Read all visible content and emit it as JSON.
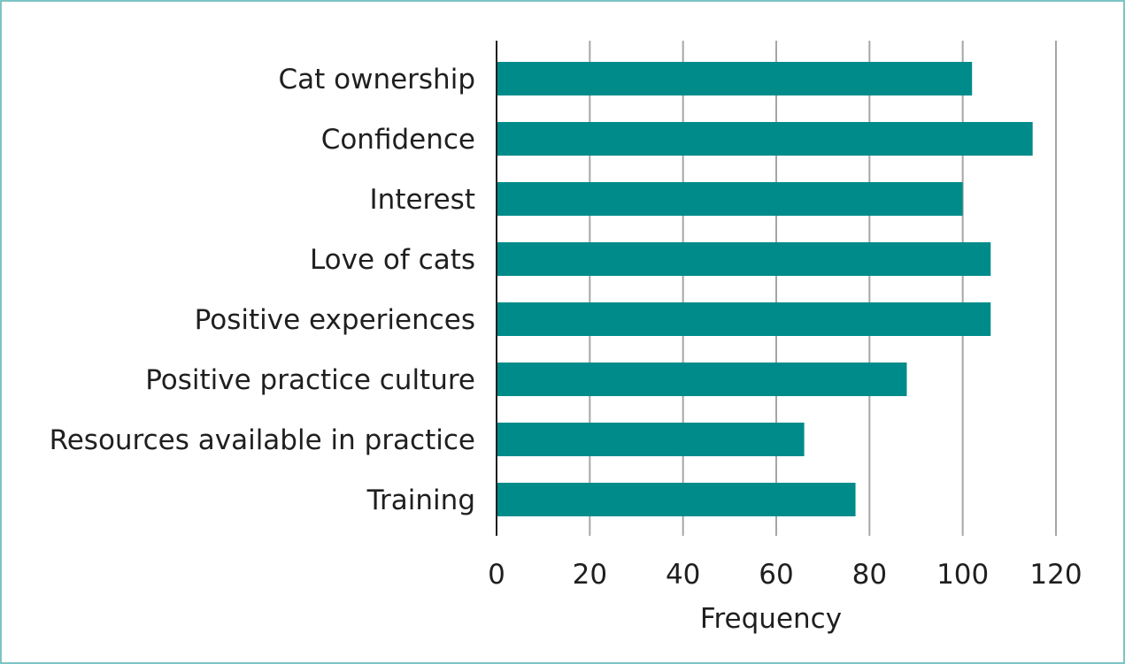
{
  "chart_data": {
    "type": "bar",
    "orientation": "horizontal",
    "categories": [
      "Cat ownership",
      "Confidence",
      "Interest",
      "Love of cats",
      "Positive experiences",
      "Positive practice culture",
      "Resources available in practice",
      "Training"
    ],
    "values": [
      102,
      115,
      100,
      106,
      106,
      88,
      66,
      77
    ],
    "xlabel": "Frequency",
    "ylabel": "",
    "xlim": [
      0,
      120
    ],
    "xticks": [
      0,
      20,
      40,
      60,
      80,
      100,
      120
    ],
    "grid": "vertical",
    "bar_color": "#008b8b",
    "legend": "none"
  }
}
